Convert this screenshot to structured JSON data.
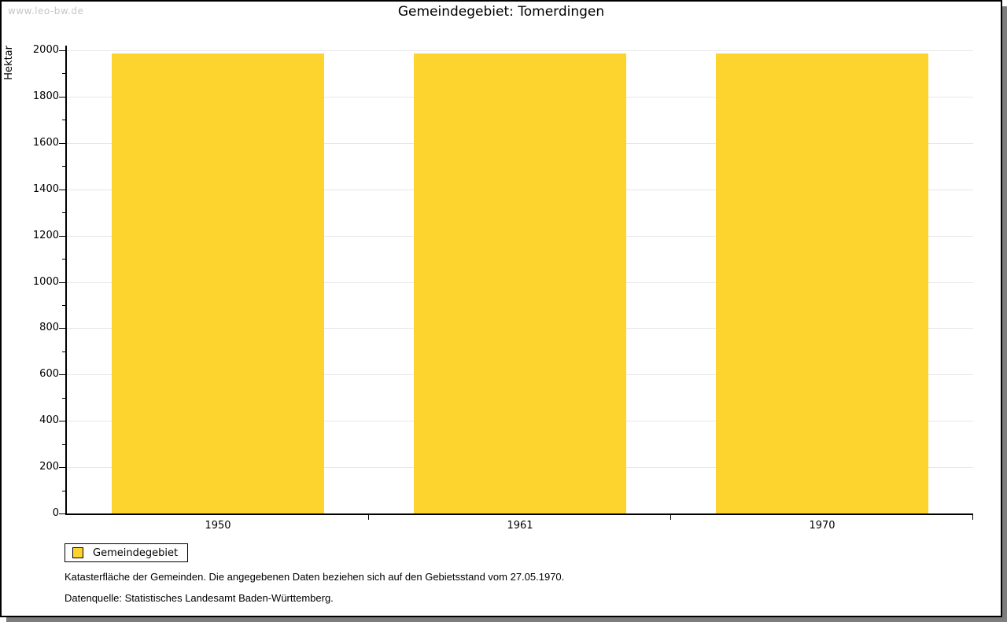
{
  "watermark": "www.leo-bw.de",
  "chart_data": {
    "type": "bar",
    "title": "Gemeindegebiet: Tomerdingen",
    "categories": [
      "1950",
      "1961",
      "1970"
    ],
    "series": [
      {
        "name": "Gemeindegebiet",
        "color": "#FCD42D",
        "values": [
          1988,
          1988,
          1988
        ]
      }
    ],
    "xlabel": "",
    "ylabel": "Hektar",
    "ylim": [
      0,
      2000
    ],
    "ytick_major": 200,
    "ytick_minor": 100,
    "grid": true,
    "legend_entries": [
      "Gemeindegebiet"
    ],
    "legend_position": "bottom-left"
  },
  "footer": {
    "line1": "Katasterfläche der Gemeinden. Die angegebenen Daten beziehen sich auf den Gebietsstand vom 27.05.1970.",
    "line2": "Datenquelle: Statistisches Landesamt Baden-Württemberg."
  },
  "colors": {
    "bar": "#FCD42D",
    "grid": "#e7e7e7",
    "axis": "#000000",
    "watermark": "#c6c6c6",
    "shadow": "#7d7d7d",
    "background": "#ffffff"
  }
}
